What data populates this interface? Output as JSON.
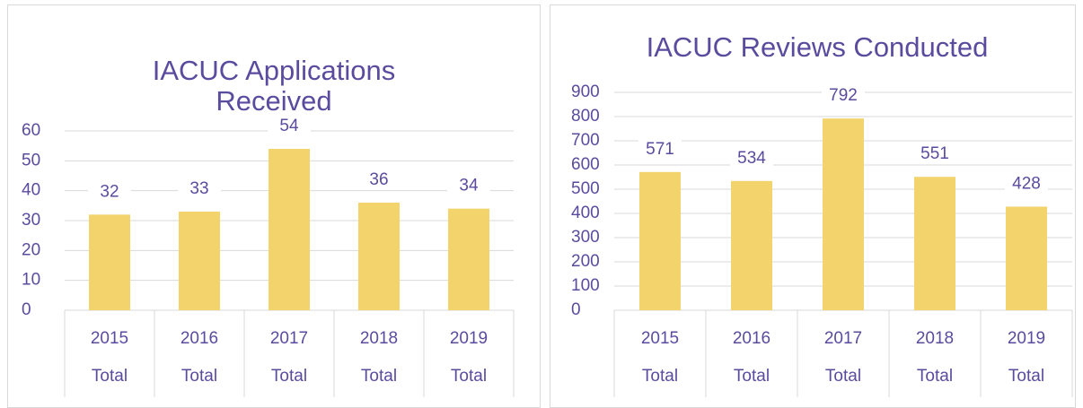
{
  "chart_data": [
    {
      "type": "bar",
      "title": "IACUC Applications Received",
      "categories": [
        [
          "2015",
          "Total"
        ],
        [
          "2016",
          "Total"
        ],
        [
          "2017",
          "Total"
        ],
        [
          "2018",
          "Total"
        ],
        [
          "2019",
          "Total"
        ]
      ],
      "values": [
        32,
        33,
        54,
        36,
        34
      ],
      "color": "#f3d36b",
      "ylim": [
        0,
        60
      ],
      "yticks": [
        0,
        10,
        20,
        30,
        40,
        50,
        60
      ],
      "grid": true
    },
    {
      "type": "bar",
      "title": "IACUC Reviews Conducted",
      "categories": [
        [
          "2015",
          "Total"
        ],
        [
          "2016",
          "Total"
        ],
        [
          "2017",
          "Total"
        ],
        [
          "2018",
          "Total"
        ],
        [
          "2019",
          "Total"
        ]
      ],
      "values": [
        571,
        534,
        792,
        551,
        428
      ],
      "color": "#f3d36b",
      "ylim": [
        0,
        900
      ],
      "yticks": [
        0,
        100,
        200,
        300,
        400,
        500,
        600,
        700,
        800,
        900
      ],
      "grid": true
    }
  ]
}
